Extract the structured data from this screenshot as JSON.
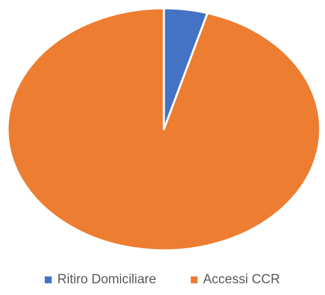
{
  "chart_data": {
    "type": "pie",
    "categories": [
      "Ritiro Domiciliare",
      "Accessi CCR"
    ],
    "values": [
      4.5,
      95.5
    ],
    "colors": [
      "#4472c4",
      "#ed7d31"
    ],
    "start_angle": "12 o'clock",
    "direction": "clockwise",
    "slice_border": "#ffffff",
    "legend": {
      "placement": "bottom",
      "items": [
        "Ritiro Domiciliare",
        "Accessi CCR"
      ]
    }
  }
}
